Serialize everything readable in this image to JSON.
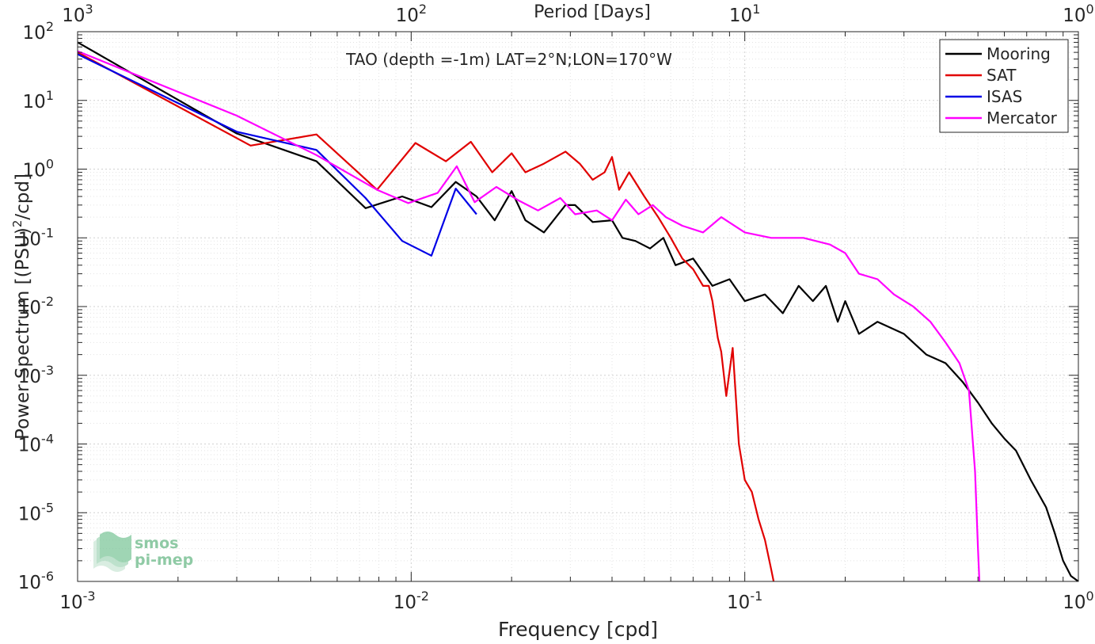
{
  "chart_data": {
    "type": "line",
    "title": "TAO (depth =-1m) LAT=2°N;LON=170°W",
    "xlabel": "Frequency [cpd]",
    "ylabel": "Power Spectrum [(PSU)^2/cpd]",
    "x2label": "Period [Days]",
    "xscale": "log",
    "yscale": "log",
    "xlim": [
      0.001,
      1
    ],
    "ylim": [
      1e-06,
      100
    ],
    "grid": true,
    "legend_position": "top-right",
    "x_ticks": [
      {
        "base": "10",
        "exp": "-3"
      },
      {
        "base": "10",
        "exp": "-2"
      },
      {
        "base": "10",
        "exp": "-1"
      },
      {
        "base": "10",
        "exp": "0"
      }
    ],
    "x2_ticks": [
      {
        "base": "10",
        "exp": "3"
      },
      {
        "base": "10",
        "exp": "2"
      },
      {
        "base": "10",
        "exp": "1"
      },
      {
        "base": "10",
        "exp": "0"
      }
    ],
    "y_ticks": [
      {
        "base": "10",
        "exp": "-6"
      },
      {
        "base": "10",
        "exp": "-5"
      },
      {
        "base": "10",
        "exp": "-4"
      },
      {
        "base": "10",
        "exp": "-3"
      },
      {
        "base": "10",
        "exp": "-2"
      },
      {
        "base": "10",
        "exp": "-1"
      },
      {
        "base": "10",
        "exp": "0"
      },
      {
        "base": "10",
        "exp": "1"
      },
      {
        "base": "10",
        "exp": "2"
      }
    ],
    "series": [
      {
        "name": "Mooring",
        "color": "#000000",
        "points": [
          [
            0.001,
            70
          ],
          [
            0.003,
            3.3
          ],
          [
            0.0052,
            1.3
          ],
          [
            0.0073,
            0.27
          ],
          [
            0.0094,
            0.4
          ],
          [
            0.0115,
            0.28
          ],
          [
            0.0136,
            0.65
          ],
          [
            0.0157,
            0.4
          ],
          [
            0.0178,
            0.18
          ],
          [
            0.02,
            0.48
          ],
          [
            0.022,
            0.18
          ],
          [
            0.025,
            0.12
          ],
          [
            0.029,
            0.3
          ],
          [
            0.031,
            0.3
          ],
          [
            0.035,
            0.17
          ],
          [
            0.04,
            0.18
          ],
          [
            0.043,
            0.1
          ],
          [
            0.047,
            0.09
          ],
          [
            0.052,
            0.07
          ],
          [
            0.057,
            0.1
          ],
          [
            0.062,
            0.04
          ],
          [
            0.07,
            0.05
          ],
          [
            0.08,
            0.02
          ],
          [
            0.09,
            0.025
          ],
          [
            0.1,
            0.012
          ],
          [
            0.115,
            0.015
          ],
          [
            0.13,
            0.008
          ],
          [
            0.145,
            0.02
          ],
          [
            0.16,
            0.012
          ],
          [
            0.175,
            0.02
          ],
          [
            0.19,
            0.006
          ],
          [
            0.2,
            0.012
          ],
          [
            0.22,
            0.004
          ],
          [
            0.25,
            0.006
          ],
          [
            0.3,
            0.004
          ],
          [
            0.35,
            0.002
          ],
          [
            0.4,
            0.0015
          ],
          [
            0.45,
            0.0008
          ],
          [
            0.5,
            0.0004
          ],
          [
            0.55,
            0.0002
          ],
          [
            0.6,
            0.00012
          ],
          [
            0.65,
            8e-05
          ],
          [
            0.72,
            3e-05
          ],
          [
            0.8,
            1.2e-05
          ],
          [
            0.85,
            5e-06
          ],
          [
            0.9,
            2e-06
          ],
          [
            0.95,
            1.2e-06
          ],
          [
            1.0,
            1e-06
          ]
        ]
      },
      {
        "name": "SAT",
        "color": "#e10000",
        "points": [
          [
            0.001,
            50
          ],
          [
            0.0033,
            2.2
          ],
          [
            0.0052,
            3.2
          ],
          [
            0.0079,
            0.5
          ],
          [
            0.0103,
            2.4
          ],
          [
            0.0127,
            1.3
          ],
          [
            0.0151,
            2.5
          ],
          [
            0.0175,
            0.9
          ],
          [
            0.02,
            1.7
          ],
          [
            0.022,
            0.9
          ],
          [
            0.025,
            1.2
          ],
          [
            0.029,
            1.8
          ],
          [
            0.032,
            1.2
          ],
          [
            0.035,
            0.7
          ],
          [
            0.038,
            0.9
          ],
          [
            0.04,
            1.5
          ],
          [
            0.042,
            0.5
          ],
          [
            0.045,
            0.9
          ],
          [
            0.05,
            0.4
          ],
          [
            0.055,
            0.2
          ],
          [
            0.06,
            0.1
          ],
          [
            0.065,
            0.05
          ],
          [
            0.07,
            0.035
          ],
          [
            0.075,
            0.02
          ],
          [
            0.078,
            0.02
          ],
          [
            0.08,
            0.012
          ],
          [
            0.083,
            0.0035
          ],
          [
            0.085,
            0.0022
          ],
          [
            0.088,
            0.0005
          ],
          [
            0.092,
            0.0025
          ],
          [
            0.096,
            0.0001
          ],
          [
            0.1,
            3e-05
          ],
          [
            0.105,
            2e-05
          ],
          [
            0.11,
            8e-06
          ],
          [
            0.115,
            4e-06
          ],
          [
            0.12,
            1.5e-06
          ],
          [
            0.122,
            1e-06
          ]
        ]
      },
      {
        "name": "ISAS",
        "color": "#0000e6",
        "points": [
          [
            0.001,
            47
          ],
          [
            0.003,
            3.5
          ],
          [
            0.0052,
            1.9
          ],
          [
            0.0073,
            0.38
          ],
          [
            0.0094,
            0.09
          ],
          [
            0.0115,
            0.055
          ],
          [
            0.0136,
            0.52
          ],
          [
            0.0157,
            0.22
          ]
        ]
      },
      {
        "name": "Mercator",
        "color": "#ff00ff",
        "points": [
          [
            0.001,
            52
          ],
          [
            0.003,
            6
          ],
          [
            0.0052,
            1.6
          ],
          [
            0.0079,
            0.5
          ],
          [
            0.0098,
            0.32
          ],
          [
            0.012,
            0.45
          ],
          [
            0.0137,
            1.1
          ],
          [
            0.0155,
            0.33
          ],
          [
            0.018,
            0.55
          ],
          [
            0.021,
            0.35
          ],
          [
            0.024,
            0.25
          ],
          [
            0.028,
            0.38
          ],
          [
            0.031,
            0.22
          ],
          [
            0.036,
            0.25
          ],
          [
            0.04,
            0.18
          ],
          [
            0.044,
            0.36
          ],
          [
            0.048,
            0.22
          ],
          [
            0.053,
            0.3
          ],
          [
            0.058,
            0.2
          ],
          [
            0.065,
            0.15
          ],
          [
            0.075,
            0.12
          ],
          [
            0.085,
            0.2
          ],
          [
            0.1,
            0.12
          ],
          [
            0.12,
            0.1
          ],
          [
            0.15,
            0.1
          ],
          [
            0.18,
            0.08
          ],
          [
            0.2,
            0.06
          ],
          [
            0.22,
            0.03
          ],
          [
            0.25,
            0.025
          ],
          [
            0.28,
            0.015
          ],
          [
            0.32,
            0.01
          ],
          [
            0.36,
            0.006
          ],
          [
            0.4,
            0.003
          ],
          [
            0.44,
            0.0015
          ],
          [
            0.47,
            0.0006
          ],
          [
            0.49,
            4e-05
          ],
          [
            0.5,
            3e-06
          ],
          [
            0.505,
            1e-06
          ]
        ]
      }
    ]
  },
  "watermark": {
    "line1": "smos",
    "line2": "pi-mep"
  }
}
